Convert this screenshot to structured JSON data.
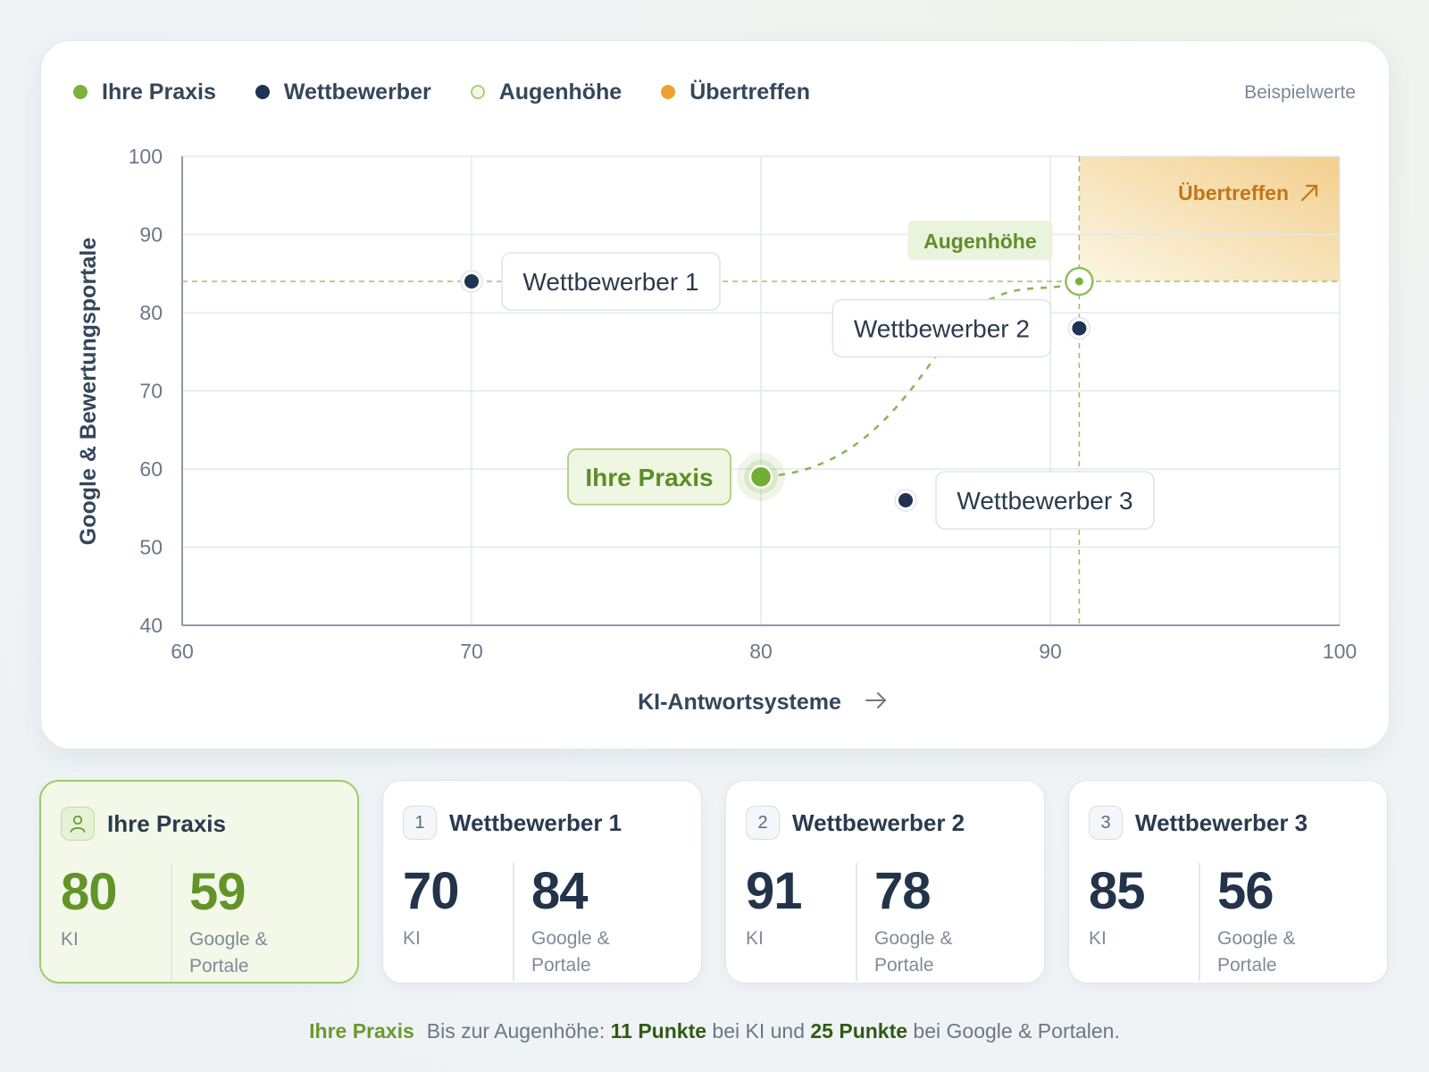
{
  "legend": [
    {
      "label": "Ihre Praxis",
      "color": "#7bb33a",
      "style": "filled"
    },
    {
      "label": "Wettbewerber",
      "color": "#1f3352",
      "style": "filled"
    },
    {
      "label": "Augenhöhe",
      "color": "#8fc05a",
      "style": "ring"
    },
    {
      "label": "Übertreffen",
      "color": "#f0a030",
      "style": "filled"
    }
  ],
  "note": "Beispielwerte",
  "chart_data": {
    "type": "scatter",
    "xlabel": "KI-Antwortsysteme",
    "ylabel": "Google & Bewertungsportale",
    "xlim": [
      60,
      100
    ],
    "ylim": [
      40,
      100
    ],
    "xticks": [
      60,
      70,
      80,
      90,
      100
    ],
    "yticks": [
      40,
      50,
      60,
      70,
      80,
      90,
      100
    ],
    "grid": true,
    "legend_position": "top-left",
    "points": [
      {
        "label": "Ihre Praxis",
        "x": 80,
        "y": 59,
        "kind": "own"
      },
      {
        "label": "Wettbewerber 1",
        "x": 70,
        "y": 84,
        "kind": "competitor"
      },
      {
        "label": "Wettbewerber 2",
        "x": 91,
        "y": 78,
        "kind": "competitor"
      },
      {
        "label": "Wettbewerber 3",
        "x": 85,
        "y": 56,
        "kind": "competitor"
      }
    ],
    "target": {
      "label": "Augenhöhe",
      "x": 91,
      "y": 84
    },
    "exceed_zone": {
      "label": "Übertreffen",
      "x_min": 91,
      "y_min": 84
    }
  },
  "tiles": [
    {
      "badge": "",
      "name": "Ihre Praxis",
      "ki": "80",
      "ki_label": "KI",
      "gp": "59",
      "gp_label": "Google & Portale"
    },
    {
      "badge": "1",
      "name": "Wettbewerber 1",
      "ki": "70",
      "ki_label": "KI",
      "gp": "84",
      "gp_label": "Google & Portale"
    },
    {
      "badge": "2",
      "name": "Wettbewerber 2",
      "ki": "91",
      "ki_label": "KI",
      "gp": "78",
      "gp_label": "Google & Portale"
    },
    {
      "badge": "3",
      "name": "Wettbewerber 3",
      "ki": "85",
      "ki_label": "KI",
      "gp": "56",
      "gp_label": "Google & Portale"
    }
  ],
  "footer": {
    "lead": "Ihre Praxis",
    "t1": "Bis zur Augenhöhe: ",
    "b1": "11 Punkte",
    "t2": " bei KI und ",
    "b2": "25 Punkte",
    "t3": " bei Google & Portalen."
  }
}
